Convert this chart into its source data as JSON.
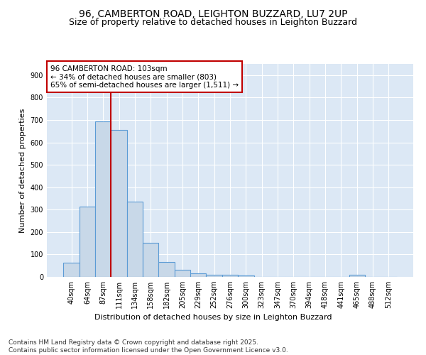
{
  "title1": "96, CAMBERTON ROAD, LEIGHTON BUZZARD, LU7 2UP",
  "title2": "Size of property relative to detached houses in Leighton Buzzard",
  "xlabel": "Distribution of detached houses by size in Leighton Buzzard",
  "ylabel": "Number of detached properties",
  "bar_color": "#c8d8e8",
  "bar_edge_color": "#5b9bd5",
  "categories": [
    "40sqm",
    "64sqm",
    "87sqm",
    "111sqm",
    "134sqm",
    "158sqm",
    "182sqm",
    "205sqm",
    "229sqm",
    "252sqm",
    "276sqm",
    "300sqm",
    "323sqm",
    "347sqm",
    "370sqm",
    "394sqm",
    "418sqm",
    "441sqm",
    "465sqm",
    "488sqm",
    "512sqm"
  ],
  "values": [
    63,
    312,
    695,
    656,
    335,
    152,
    68,
    33,
    17,
    10,
    8,
    5,
    0,
    0,
    0,
    0,
    0,
    0,
    8,
    0,
    0
  ],
  "vline_x": 2.5,
  "vline_color": "#c00000",
  "annotation_text": "96 CAMBERTON ROAD: 103sqm\n← 34% of detached houses are smaller (803)\n65% of semi-detached houses are larger (1,511) →",
  "ylim": [
    0,
    950
  ],
  "yticks": [
    0,
    100,
    200,
    300,
    400,
    500,
    600,
    700,
    800,
    900
  ],
  "background_color": "#dce8f5",
  "footer": "Contains HM Land Registry data © Crown copyright and database right 2025.\nContains public sector information licensed under the Open Government Licence v3.0.",
  "title_fontsize": 10,
  "subtitle_fontsize": 9,
  "axis_label_fontsize": 8,
  "tick_fontsize": 7,
  "annotation_fontsize": 7.5,
  "footer_fontsize": 6.5
}
